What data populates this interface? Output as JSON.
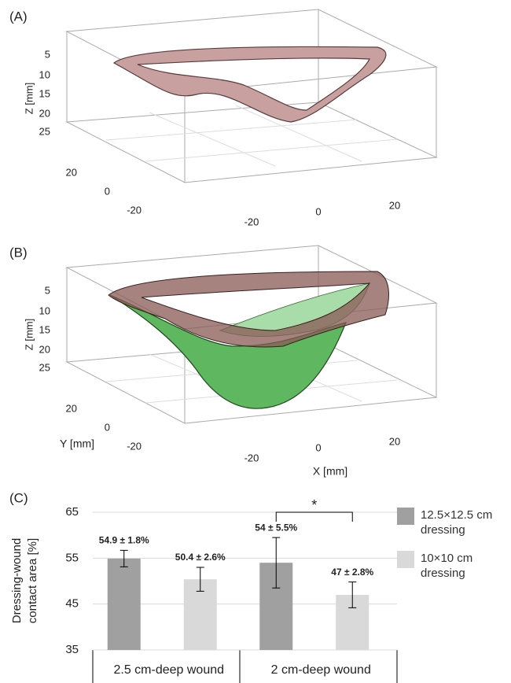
{
  "panel_a": {
    "label": "(A)",
    "z_label": "Z [mm]",
    "zticks": [
      5,
      10,
      15,
      20,
      25
    ],
    "yticks": [
      20,
      0,
      -20
    ],
    "xticks": [
      -20,
      0,
      20
    ]
  },
  "panel_b": {
    "label": "(B)",
    "z_label": "Z [mm]",
    "y_label": "Y [mm]",
    "x_label": "X [mm]",
    "zticks": [
      5,
      10,
      15,
      20,
      25
    ],
    "yticks": [
      20,
      0,
      -20
    ],
    "xticks": [
      -20,
      0,
      20
    ]
  },
  "chart_data": {
    "type": "bar",
    "panel_label": "(C)",
    "ylabel_lines": [
      "Dressing-wound",
      "contact area [%]"
    ],
    "categories": [
      "2.5 cm-deep wound",
      "2 cm-deep wound"
    ],
    "series": [
      {
        "name": "12.5×12.5 cm dressing",
        "color": "#a0a0a0",
        "values": [
          54.9,
          54
        ],
        "errors": [
          1.8,
          5.5
        ],
        "value_labels": [
          "54.9 ± 1.8%",
          "54 ± 5.5%"
        ]
      },
      {
        "name": "10×10 cm dressing",
        "color": "#d9d9d9",
        "values": [
          50.4,
          47
        ],
        "errors": [
          2.6,
          2.8
        ],
        "value_labels": [
          "50.4 ± 2.6%",
          "47 ± 2.8%"
        ]
      }
    ],
    "ylim": [
      35,
      65
    ],
    "yticks": [
      35,
      45,
      55,
      65
    ],
    "grid": true,
    "annotation": "*"
  }
}
